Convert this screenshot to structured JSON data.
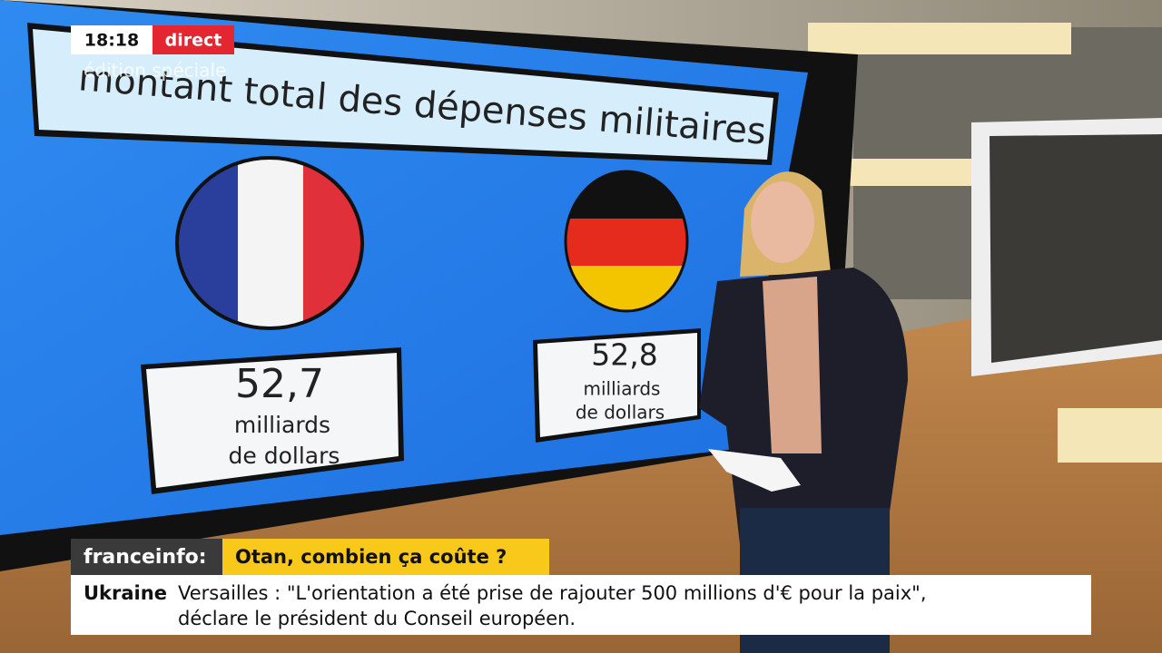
{
  "overlay": {
    "time": "18:18",
    "live": "direct",
    "edition": "édition spéciale"
  },
  "screen": {
    "title": "montant total des dépenses militaires",
    "countries": [
      {
        "amount": "52,7",
        "unit_line1": "milliards",
        "unit_line2": "de dollars"
      },
      {
        "amount": "52,8",
        "unit_line1": "milliards",
        "unit_line2": "de dollars"
      }
    ]
  },
  "banner": {
    "brand": "franceinfo:",
    "headline": "Otan, combien ça coûte ?"
  },
  "ticker": {
    "label": "Ukraine",
    "line1": "Versailles : \"L'orientation a été prise de rajouter 500 millions d'€ pour la paix\",",
    "line2": "déclare le président du Conseil européen."
  }
}
